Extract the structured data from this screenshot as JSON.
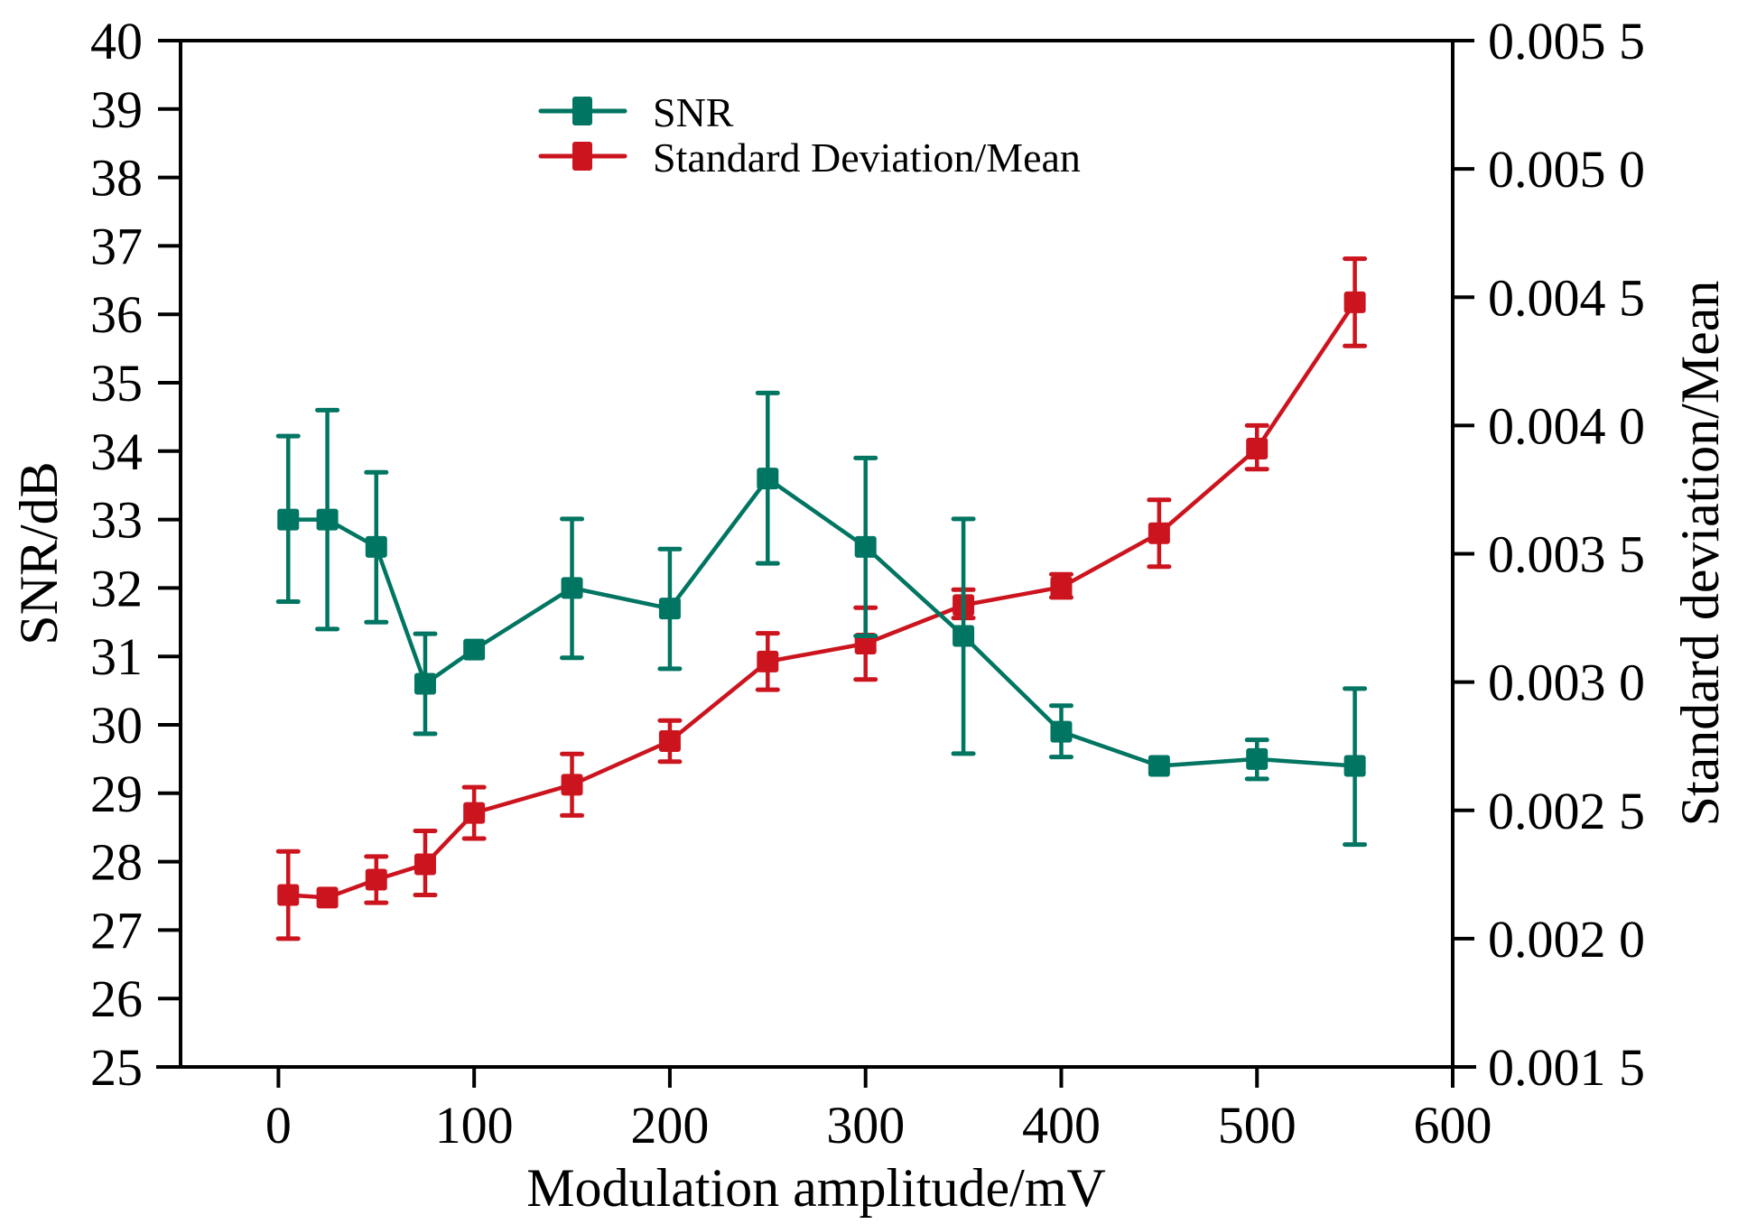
{
  "chart_data": {
    "type": "line",
    "title": "",
    "xlabel": "Modulation amplitude/mV",
    "ylabel": "SNR/dB",
    "y2label": "Standard deviation/Mean",
    "xlim": [
      -50,
      600
    ],
    "ylim": [
      25,
      40
    ],
    "y2lim": [
      0.0015,
      0.0055
    ],
    "grid": false,
    "legend_position": "top-center",
    "x_ticks": [
      0,
      100,
      200,
      300,
      400,
      500,
      600
    ],
    "x_tick_labels": [
      "0",
      "100",
      "200",
      "300",
      "400",
      "500",
      "600"
    ],
    "y_ticks": [
      25,
      26,
      27,
      28,
      29,
      30,
      31,
      32,
      33,
      34,
      35,
      36,
      37,
      38,
      39,
      40
    ],
    "y_tick_labels": [
      "25",
      "26",
      "27",
      "28",
      "29",
      "30",
      "31",
      "32",
      "33",
      "34",
      "35",
      "36",
      "37",
      "38",
      "39",
      "40"
    ],
    "y2_ticks": [
      0.0015,
      0.002,
      0.0025,
      0.003,
      0.0035,
      0.004,
      0.0045,
      0.005,
      0.0055
    ],
    "y2_tick_labels": [
      "0.001 5",
      "0.002 0",
      "0.002 5",
      "0.003 0",
      "0.003 5",
      "0.004 0",
      "0.004 5",
      "0.005 0",
      "0.005 5"
    ],
    "x": [
      5,
      25,
      50,
      75,
      100,
      150,
      200,
      250,
      300,
      350,
      400,
      450,
      500,
      550
    ],
    "series": [
      {
        "name": "SNR",
        "axis": "left",
        "color": "#007562",
        "marker": "square",
        "values": [
          33.0,
          33.0,
          32.6,
          30.6,
          31.1,
          32.0,
          31.7,
          33.6,
          32.6,
          31.3,
          29.9,
          29.4,
          29.5,
          29.4
        ],
        "err_low": [
          31.8,
          31.4,
          31.5,
          29.87,
          null,
          30.98,
          30.82,
          32.36,
          31.3,
          29.58,
          29.53,
          null,
          29.21,
          28.25
        ],
        "err_high": [
          34.22,
          34.6,
          33.69,
          31.33,
          null,
          33.01,
          32.57,
          34.85,
          33.9,
          33.01,
          30.28,
          null,
          29.78,
          30.53
        ]
      },
      {
        "name": "Standard Deviation/Mean",
        "axis": "right",
        "color": "#cc141e",
        "marker": "square",
        "values": [
          0.00217,
          0.00216,
          0.00223,
          0.00229,
          0.00249,
          0.0026,
          0.00277,
          0.00308,
          0.00315,
          0.0033,
          0.00337,
          0.00358,
          0.00391,
          0.00448
        ],
        "err_low": [
          0.002,
          null,
          0.00214,
          0.00217,
          0.00239,
          0.00248,
          0.00269,
          0.00297,
          0.00301,
          0.00325,
          0.00333,
          0.00345,
          0.00383,
          0.00431
        ],
        "err_high": [
          0.00234,
          null,
          0.00232,
          0.00242,
          0.00259,
          0.00272,
          0.00285,
          0.00319,
          0.00329,
          0.00336,
          0.00342,
          0.00371,
          0.004,
          0.00465
        ]
      }
    ],
    "legend": [
      "SNR",
      "Standard Deviation/Mean"
    ]
  }
}
